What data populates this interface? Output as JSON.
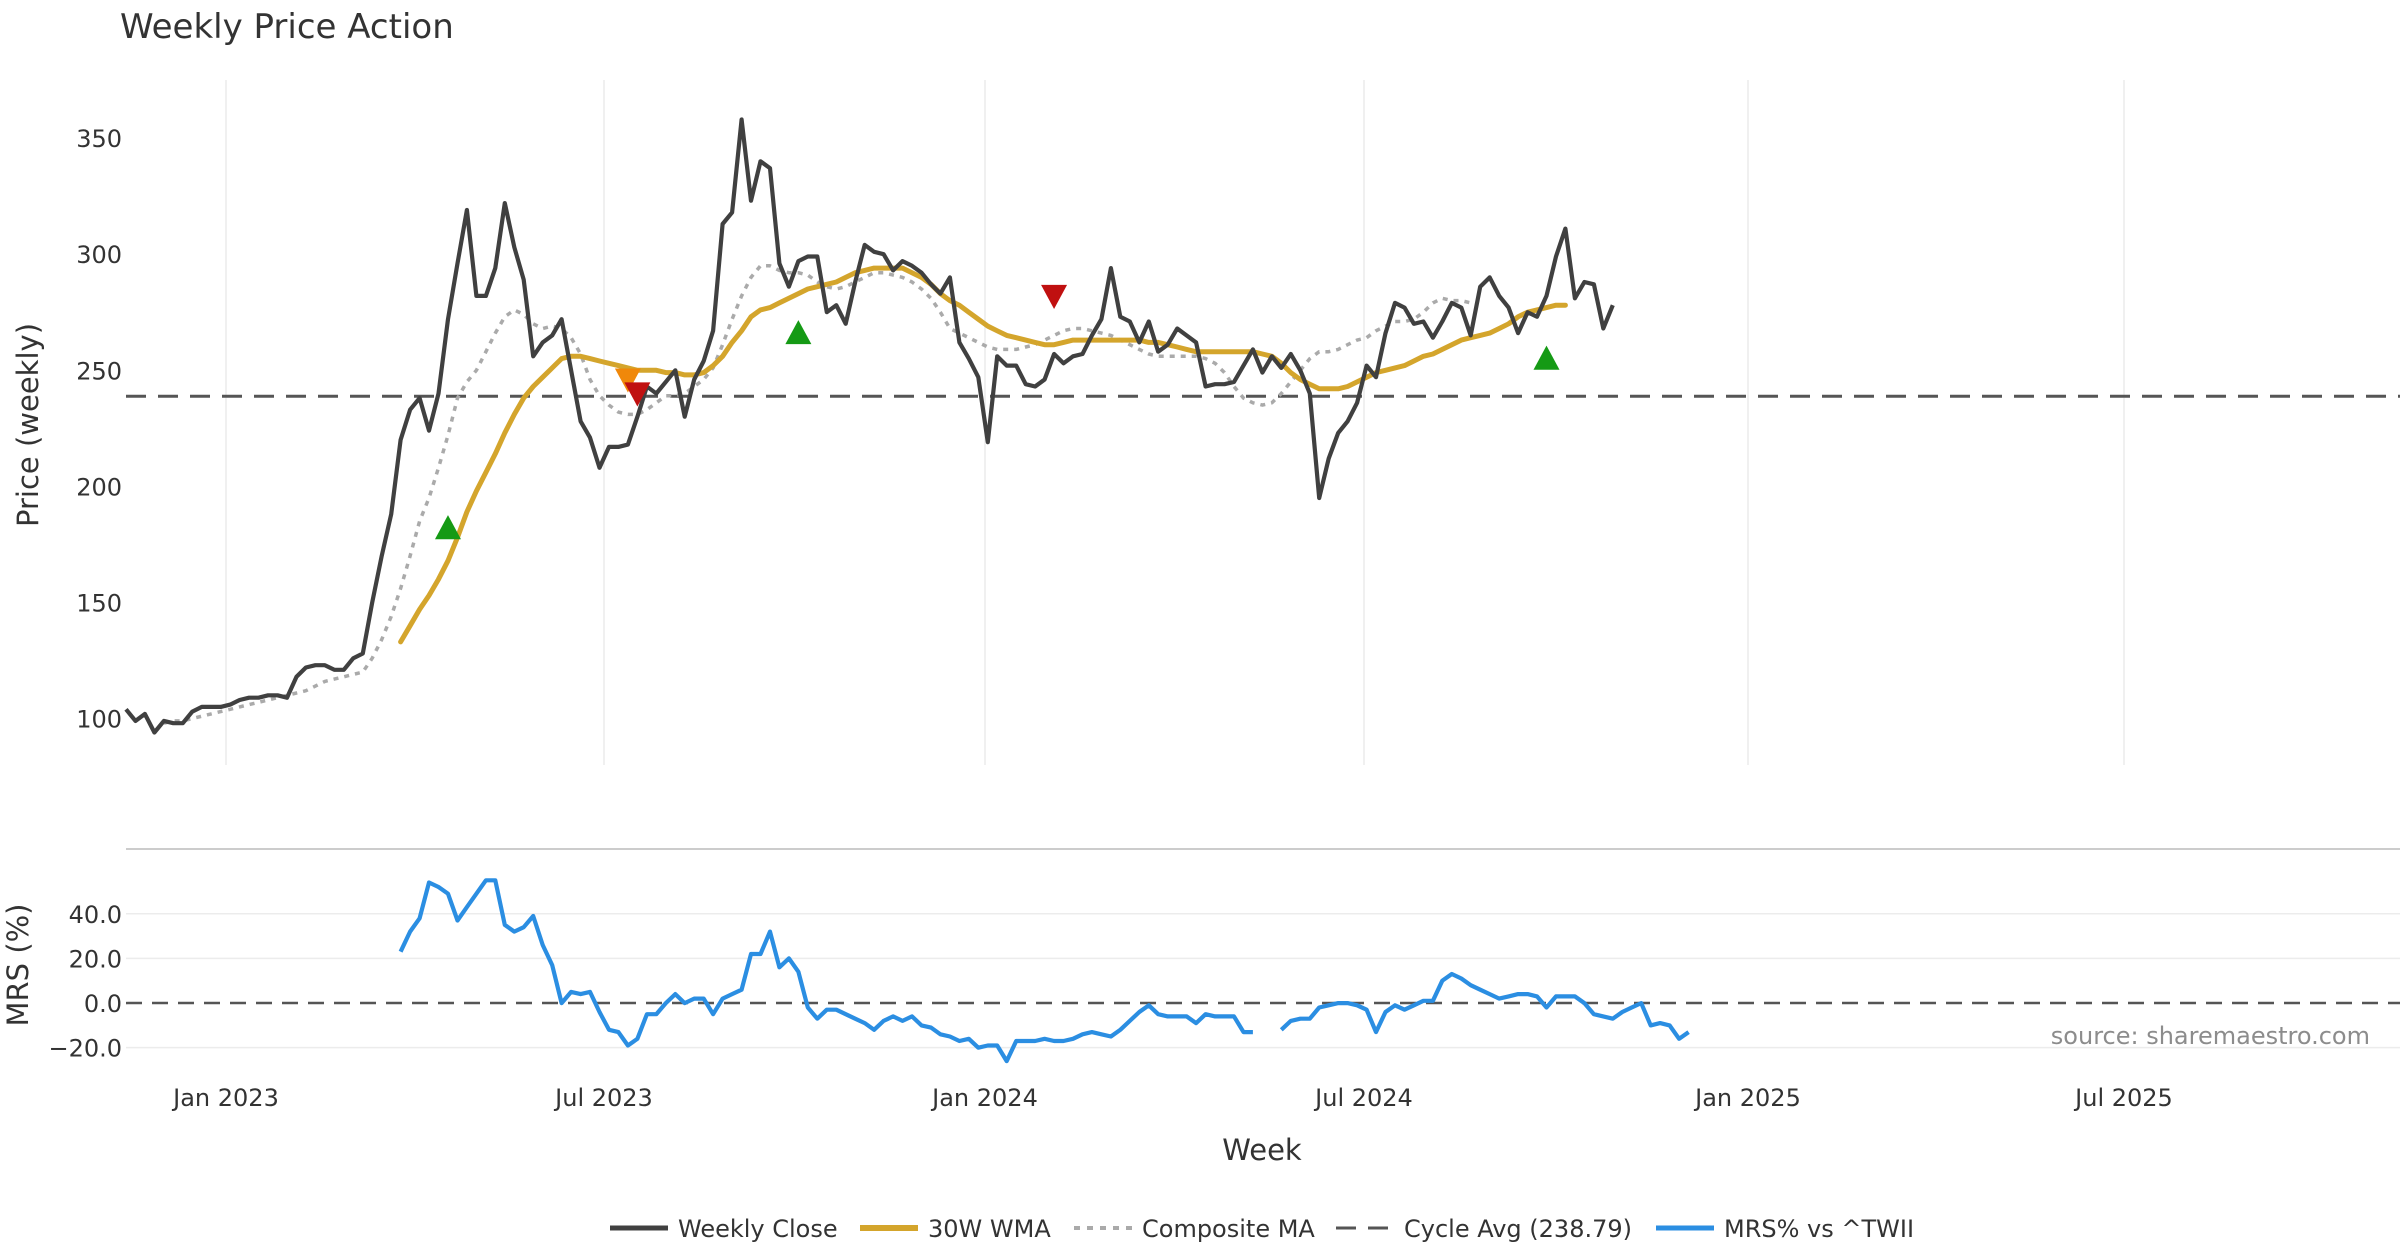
{
  "chart_data": {
    "type": "line",
    "title": "Weekly Price Action",
    "xlabel": "Week",
    "ylabel_price": "Price (weekly)",
    "ylabel_mrs": "MRS (%)",
    "source": "source: sharemaestro.com",
    "x_ticks": [
      "Jan 2023",
      "Jul 2023",
      "Jan 2024",
      "Jul 2024",
      "Jan 2025",
      "Jul 2025"
    ],
    "price_ylim": [
      80,
      375
    ],
    "price_yticks": [
      "100",
      "150",
      "200",
      "250",
      "300",
      "350"
    ],
    "mrs_ylim": [
      -30,
      65
    ],
    "mrs_yticks": [
      "−20.0",
      "0.0",
      "20.0",
      "40.0"
    ],
    "weeks_start": "2022-11",
    "cycle_avg": 238.79,
    "legend": [
      "Weekly Close",
      "30W WMA",
      "Composite MA",
      "Cycle Avg (238.79)",
      "MRS% vs ^TWII"
    ],
    "colors": {
      "close": "#404040",
      "wma": "#d4a52c",
      "composite": "#aaaaaa",
      "cycle": "#555555",
      "mrs": "#2b8ee2",
      "buy": "#159a15",
      "sell": "#c01010",
      "warn": "#f0880a"
    },
    "series": [
      {
        "name": "Weekly Close",
        "x0": 0,
        "values": [
          104,
          99,
          102,
          94,
          99,
          98,
          98,
          103,
          105,
          105,
          105,
          106,
          108,
          109,
          109,
          110,
          110,
          109,
          118,
          122,
          123,
          123,
          121,
          121,
          126,
          128,
          150,
          170,
          188,
          220,
          233,
          238,
          224,
          240,
          272,
          296,
          319,
          282,
          282,
          294,
          322,
          303,
          289,
          256,
          262,
          265,
          272,
          250,
          228,
          221,
          208,
          217,
          217,
          218,
          230,
          243,
          240,
          245,
          250,
          230,
          246,
          254,
          267,
          313,
          318,
          358,
          323,
          340,
          337,
          296,
          286,
          297,
          299,
          299,
          275,
          278,
          270,
          288,
          304,
          301,
          300,
          293,
          297,
          295,
          292,
          287,
          283,
          290,
          262,
          255,
          247,
          219,
          256,
          252,
          252,
          244,
          243,
          246,
          257,
          253,
          256,
          257,
          265,
          272,
          294,
          273,
          271,
          262,
          271,
          258,
          261,
          268,
          265,
          262,
          243,
          244,
          244,
          245,
          252,
          259,
          249,
          256,
          251,
          257,
          250,
          240,
          195,
          212,
          223,
          228,
          236,
          252,
          247,
          266,
          279,
          277,
          270,
          271,
          264,
          271,
          279,
          277,
          265,
          286,
          290,
          282,
          277,
          266,
          275,
          273,
          282,
          299,
          311,
          281,
          288,
          287,
          268,
          278
        ]
      },
      {
        "name": "30W WMA",
        "x0": 29,
        "values": [
          133,
          140,
          147,
          153,
          160,
          168,
          178,
          189,
          198,
          206,
          214,
          223,
          231,
          238,
          243,
          247,
          251,
          255,
          256,
          256,
          255,
          254,
          253,
          252,
          251,
          250,
          250,
          250,
          249,
          249,
          248,
          248,
          249,
          252,
          256,
          262,
          267,
          273,
          276,
          277,
          279,
          281,
          283,
          285,
          286,
          287,
          288,
          290,
          292,
          293,
          294,
          294,
          294,
          294,
          292,
          290,
          287,
          283,
          280,
          278,
          275,
          272,
          269,
          267,
          265,
          264,
          263,
          262,
          261,
          261,
          262,
          263,
          263,
          263,
          263,
          263,
          263,
          263,
          263,
          262,
          262,
          261,
          260,
          259,
          258,
          258,
          258,
          258,
          258,
          258,
          258,
          257,
          256,
          253,
          249,
          246,
          244,
          242,
          242,
          242,
          243,
          245,
          247,
          249,
          250,
          251,
          252,
          254,
          256,
          257,
          259,
          261,
          263,
          264,
          265,
          266,
          268,
          270,
          273,
          275,
          276,
          277,
          278,
          278
        ]
      },
      {
        "name": "Composite MA",
        "x0": 4,
        "values": [
          98,
          99,
          99,
          100,
          101,
          102,
          103,
          104,
          105,
          106,
          107,
          108,
          109,
          110,
          111,
          112,
          114,
          116,
          117,
          118,
          119,
          120,
          126,
          134,
          144,
          156,
          170,
          185,
          195,
          208,
          222,
          238,
          245,
          250,
          258,
          266,
          273,
          276,
          274,
          270,
          268,
          269,
          268,
          264,
          257,
          246,
          239,
          235,
          232,
          231,
          231,
          233,
          236,
          239,
          239,
          240,
          243,
          246,
          251,
          261,
          272,
          282,
          290,
          295,
          295,
          293,
          292,
          292,
          291,
          288,
          286,
          285,
          286,
          288,
          290,
          292,
          292,
          291,
          290,
          288,
          285,
          281,
          275,
          268,
          266,
          264,
          262,
          260,
          259,
          259,
          259,
          260,
          261,
          263,
          265,
          267,
          268,
          268,
          267,
          266,
          265,
          263,
          261,
          259,
          257,
          256,
          256,
          256,
          256,
          256,
          255,
          253,
          249,
          243,
          238,
          236,
          235,
          236,
          240,
          245,
          250,
          255,
          258,
          258,
          259,
          261,
          263,
          264,
          267,
          269,
          271,
          271,
          272,
          275,
          279,
          281,
          280,
          280,
          279
        ]
      }
    ],
    "mrs_series": {
      "name": "MRS% vs ^TWII",
      "x0": 29,
      "values": [
        23,
        32,
        38,
        54,
        52,
        49,
        37,
        43,
        49,
        55,
        55,
        35,
        32,
        34,
        39,
        26,
        17,
        0,
        5,
        4,
        5,
        -4,
        -12,
        -13,
        -19,
        -16,
        -5,
        -5,
        0,
        4,
        0,
        2,
        2,
        -5,
        2,
        4,
        6,
        22,
        22,
        32,
        16,
        20,
        14,
        -2,
        -7,
        -3,
        -3,
        -5,
        -7,
        -9,
        -12,
        -8,
        -6,
        -8,
        -6,
        -10,
        -11,
        -14,
        -15,
        -17,
        -16,
        -20,
        -19,
        -19,
        -26,
        -17,
        -17,
        -17,
        -16,
        -17,
        -17,
        -16,
        -14,
        -13,
        -14,
        -15,
        -12,
        -8,
        -4,
        -1,
        -5,
        -6,
        -6,
        -6,
        -9,
        -5,
        -6,
        -6,
        -6,
        -13,
        -13,
        null,
        null,
        -12,
        -8,
        -7,
        -7,
        -2,
        -1,
        0,
        0,
        -1,
        -3,
        -13,
        -4,
        -1,
        -3,
        -1,
        1,
        1,
        10,
        13,
        11,
        8,
        6,
        4,
        2,
        3,
        4,
        4,
        3,
        -2,
        3,
        3,
        3,
        0,
        -5,
        -6,
        -7,
        -4,
        -2,
        0,
        -10,
        -9,
        -10,
        -16,
        -13
      ]
    },
    "markers": [
      {
        "kind": "buy",
        "week": 34,
        "y": 182
      },
      {
        "kind": "warn",
        "week": 53,
        "y": 246
      },
      {
        "kind": "sell",
        "week": 54,
        "y": 240
      },
      {
        "kind": "buy",
        "week": 71,
        "y": 266
      },
      {
        "kind": "sell",
        "week": 98,
        "y": 282
      },
      {
        "kind": "buy",
        "week": 150,
        "y": 255
      }
    ]
  }
}
